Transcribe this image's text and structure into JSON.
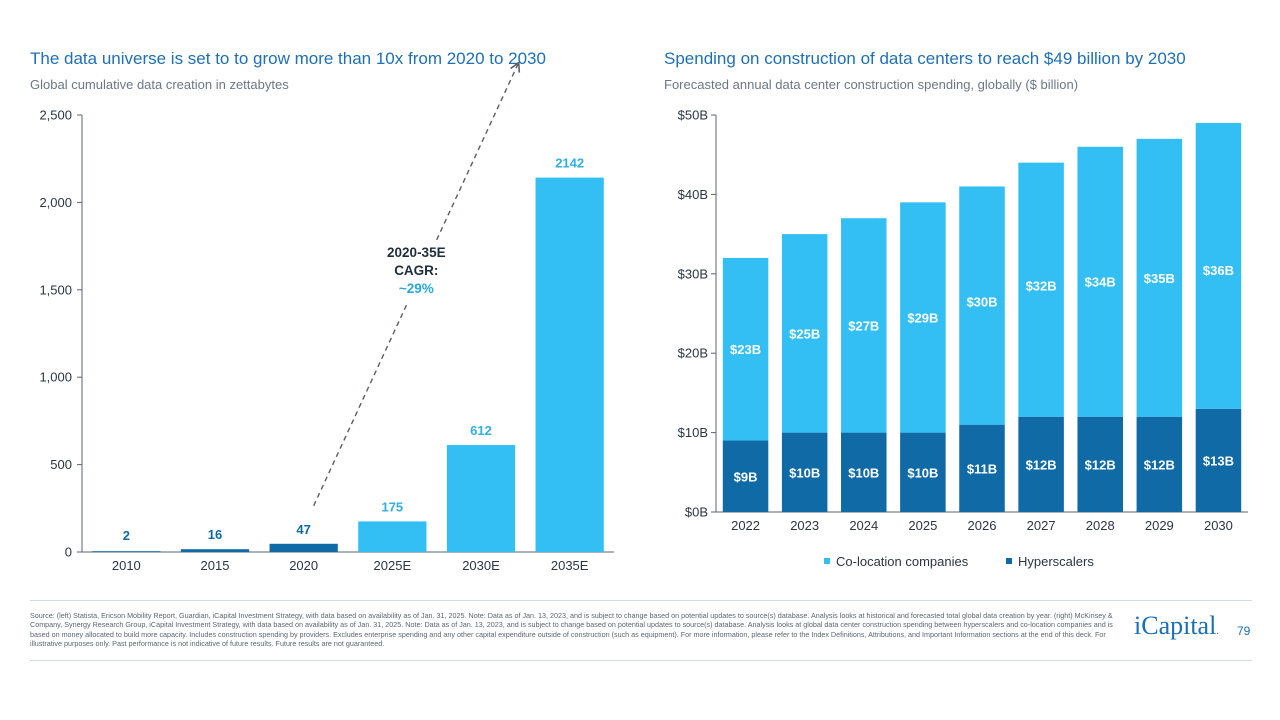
{
  "left": {
    "title": "The data universe is set to to grow more than 10x from 2020 to 2030",
    "subtitle": "Global cumulative data creation in zettabytes"
  },
  "right": {
    "title": "Spending on construction of data centers to reach $49 billion by 2030",
    "subtitle": "Forecasted annual data center construction spending, globally ($ billion)"
  },
  "chart_data": [
    {
      "type": "bar",
      "title": "The data universe is set to to grow more than 10x from 2020 to 2030",
      "subtitle": "Global cumulative data creation in zettabytes",
      "categories": [
        "2010",
        "2015",
        "2020",
        "2025E",
        "2030E",
        "2035E"
      ],
      "values": [
        2,
        16,
        47,
        175,
        612,
        2142
      ],
      "value_labels": [
        "2",
        "16",
        "47",
        "175",
        "612",
        "2142"
      ],
      "bar_colors": [
        "#0f6aa5",
        "#0f6aa5",
        "#0f6aa5",
        "#33bff3",
        "#33bff3",
        "#33bff3"
      ],
      "label_colors": [
        "#0f6aa5",
        "#0f6aa5",
        "#0f6aa5",
        "#33aee6",
        "#33aee6",
        "#33aee6"
      ],
      "yticks": [
        "0",
        "500",
        "1,000",
        "1,500",
        "2,000",
        "2,500"
      ],
      "ytick_values": [
        0,
        500,
        1000,
        1500,
        2000,
        2500
      ],
      "ylim": [
        0,
        2500
      ],
      "annotation": {
        "lines": [
          "2020-35E",
          "CAGR:",
          "~29%"
        ],
        "from_category": "2020",
        "to_category": "2035E"
      }
    },
    {
      "type": "bar",
      "stacked": true,
      "title": "Spending on construction of data centers to reach $49 billion by 2030",
      "subtitle": "Forecasted annual data center construction spending, globally ($ billion)",
      "categories": [
        "2022",
        "2023",
        "2024",
        "2025",
        "2026",
        "2027",
        "2028",
        "2029",
        "2030"
      ],
      "series": [
        {
          "name": "Hyperscalers",
          "color": "#0f6aa5",
          "values": [
            9,
            10,
            10,
            10,
            11,
            12,
            12,
            12,
            13
          ],
          "labels": [
            "$9B",
            "$10B",
            "$10B",
            "$10B",
            "$11B",
            "$12B",
            "$12B",
            "$12B",
            "$13B"
          ],
          "label_y_values": [
            4.5,
            5,
            5,
            5,
            5.5,
            6,
            6,
            6,
            6.5
          ]
        },
        {
          "name": "Co-location companies",
          "color": "#33bff3",
          "values": [
            23,
            25,
            27,
            29,
            30,
            32,
            34,
            35,
            36
          ],
          "labels": [
            "$23B",
            "$25B",
            "$27B",
            "$29B",
            "$30B",
            "$32B",
            "$34B",
            "$35B",
            "$36B"
          ],
          "label_y_values": [
            20.5,
            22.5,
            23.5,
            24.5,
            26.5,
            28.5,
            29,
            29.5,
            30.5
          ]
        }
      ],
      "yticks": [
        "$0B",
        "$10B",
        "$20B",
        "$30B",
        "$40B",
        "$50B"
      ],
      "ytick_values": [
        0,
        10,
        20,
        30,
        40,
        50
      ],
      "ylim": [
        0,
        50
      ],
      "legend": {
        "position": "bottom-center",
        "entries": [
          "Co-location companies",
          "Hyperscalers"
        ],
        "colors": [
          "#33bff3",
          "#0f6aa5"
        ]
      }
    }
  ],
  "footer": {
    "source": "Source: (left) Statista, Ericson Mobility Report, Guardian, iCapital Investment Strategy, with data based on availability as of Jan. 31, 2025. Note: Data as of Jan. 13, 2023, and is subject to change based on potential updates to source(s) database. Analysis looks at historical and forecasted total global data creation by year. (right) McKinsey & Company, Synergy Research Group, iCapital Investment Strategy, with data based on availability as of Jan. 31, 2025. Note: Data as of Jan. 13, 2023, and is subject to change based on potential updates to source(s) database. Analysis looks at global data center construction spending between hyperscalers and co-location companies and is based on money allocated to build more capacity. Includes construction spending by providers. Excludes enterprise spending and any other capital expenditure outside of construction (such as equipment). For more information, please refer to the Index Definitions, Attributions, and Important Information sections at the end of this deck. For illustrative purposes only. Past performance is not indicative of future results. Future results are not guaranteed.",
    "logo": "iCapital",
    "logo_mark": ".",
    "page_number": "79"
  }
}
